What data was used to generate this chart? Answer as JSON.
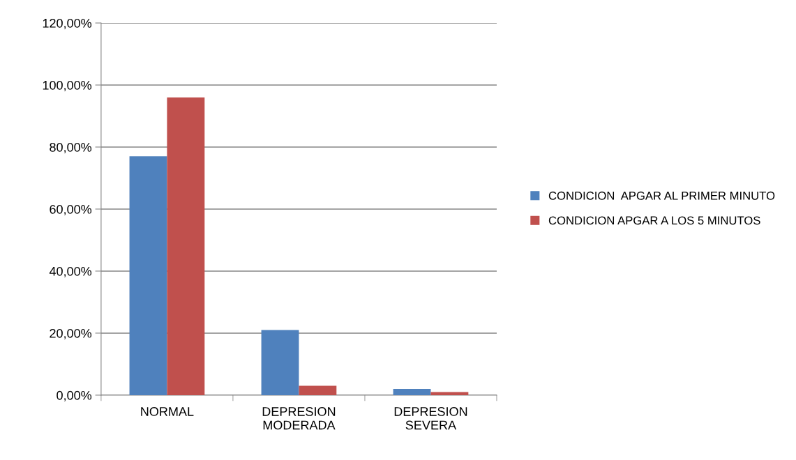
{
  "chart_data": {
    "type": "bar",
    "categories": [
      "NORMAL",
      "DEPRESION MODERADA",
      "DEPRESION SEVERA"
    ],
    "series": [
      {
        "name": "CONDICION  APGAR AL PRIMER MINUTO",
        "color": "#4f81bd",
        "values": [
          77,
          21,
          2
        ]
      },
      {
        "name": "CONDICION APGAR A LOS 5 MINUTOS",
        "color": "#c0504d",
        "values": [
          96,
          3,
          1
        ]
      }
    ],
    "ylim": [
      0,
      120
    ],
    "yticks": [
      {
        "value": 0,
        "label": "0,00%"
      },
      {
        "value": 20,
        "label": "20,00%"
      },
      {
        "value": 40,
        "label": "40,00%"
      },
      {
        "value": 60,
        "label": "60,00%"
      },
      {
        "value": 80,
        "label": "80,00%"
      },
      {
        "value": 100,
        "label": "100,00%"
      },
      {
        "value": 120,
        "label": "120,00%"
      }
    ],
    "grid": "y",
    "legend": "right"
  }
}
